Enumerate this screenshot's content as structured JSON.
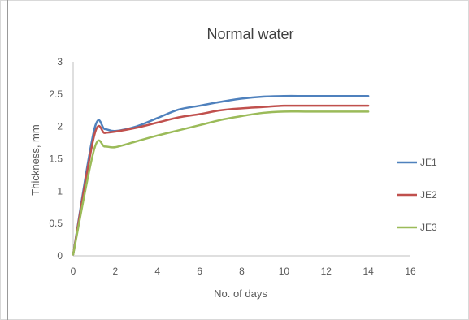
{
  "chart_data": {
    "type": "line",
    "title": "Normal water",
    "xlabel": "No. of days",
    "ylabel": "Thickness, mm",
    "xlim": [
      0,
      16
    ],
    "ylim": [
      0,
      3
    ],
    "x_ticks": [
      "0",
      "2",
      "4",
      "6",
      "8",
      "10",
      "12",
      "14",
      "16"
    ],
    "y_ticks": [
      "0",
      "0.5",
      "1",
      "1.5",
      "2",
      "2.5",
      "3"
    ],
    "grid": false,
    "legend_position": "right",
    "series": [
      {
        "name": "JE1",
        "color": "#4f81bd",
        "x": [
          0,
          1,
          1.5,
          2,
          3,
          4,
          5,
          6,
          7,
          8,
          9,
          10,
          11,
          12,
          13,
          14
        ],
        "y": [
          0.02,
          1.95,
          1.96,
          1.93,
          2.0,
          2.13,
          2.26,
          2.32,
          2.38,
          2.43,
          2.46,
          2.47,
          2.47,
          2.47,
          2.47,
          2.47
        ]
      },
      {
        "name": "JE2",
        "color": "#c0504d",
        "x": [
          0,
          1,
          1.5,
          2,
          3,
          4,
          5,
          6,
          7,
          8,
          9,
          10,
          11,
          12,
          13,
          14
        ],
        "y": [
          0.02,
          1.86,
          1.9,
          1.92,
          1.98,
          2.06,
          2.14,
          2.19,
          2.25,
          2.28,
          2.3,
          2.32,
          2.32,
          2.32,
          2.32,
          2.32
        ]
      },
      {
        "name": "JE3",
        "color": "#9bbb59",
        "x": [
          0,
          1,
          1.5,
          2,
          3,
          4,
          5,
          6,
          7,
          8,
          9,
          10,
          11,
          12,
          13,
          14
        ],
        "y": [
          0.02,
          1.65,
          1.69,
          1.68,
          1.77,
          1.86,
          1.94,
          2.02,
          2.1,
          2.16,
          2.21,
          2.23,
          2.23,
          2.23,
          2.23,
          2.23
        ]
      }
    ]
  }
}
